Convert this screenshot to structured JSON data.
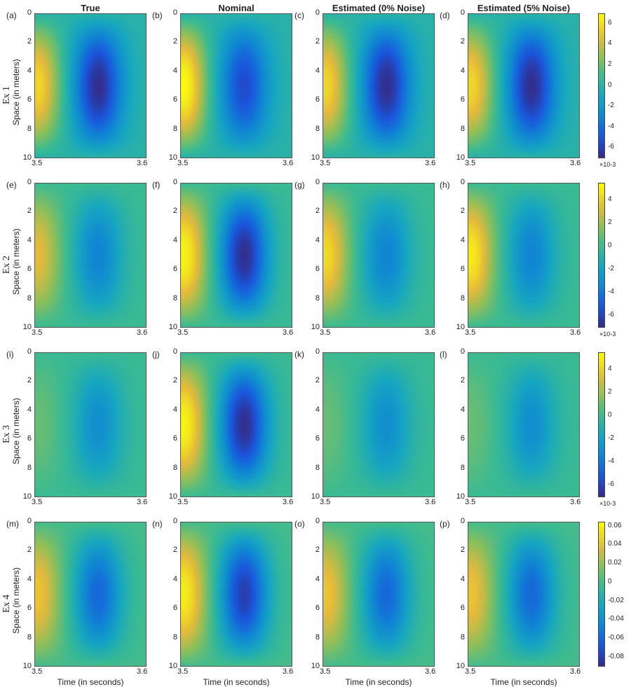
{
  "column_titles": [
    "True",
    "Nominal",
    "Estimated (0% Noise)",
    "Estimated (5% Noise)"
  ],
  "row_labels": [
    "Ex 1",
    "Ex 2",
    "Ex 3",
    "Ex 4"
  ],
  "panel_labels": [
    "(a)",
    "(b)",
    "(c)",
    "(d)",
    "(e)",
    "(f)",
    "(g)",
    "(h)",
    "(i)",
    "(j)",
    "(k)",
    "(l)",
    "(m)",
    "(n)",
    "(o)",
    "(p)"
  ],
  "ylabel": "Space (in meters)",
  "xlabel": "Time (in seconds)",
  "y_ticks": [
    "0",
    "2",
    "4",
    "6",
    "8",
    "10"
  ],
  "x_ticks": [
    "3.5",
    "3.6"
  ],
  "colorbars": [
    {
      "ticks": [
        "6",
        "4",
        "2",
        "0",
        "-2",
        "-4",
        "-6"
      ],
      "exponent": "×10-3",
      "range": [
        -7,
        7
      ]
    },
    {
      "ticks": [
        "4",
        "2",
        "0",
        "-2",
        "-4",
        "-6"
      ],
      "exponent": "×10-3",
      "range": [
        -7,
        5.5
      ]
    },
    {
      "ticks": [
        "4",
        "2",
        "0",
        "-2",
        "-4",
        "-6"
      ],
      "exponent": "×10-3",
      "range": [
        -7,
        5.5
      ]
    },
    {
      "ticks": [
        "0.06",
        "0.04",
        "0.02",
        "0",
        "-0.02",
        "-0.04",
        "-0.06",
        "-0.08"
      ],
      "exponent": "",
      "range": [
        -0.09,
        0.065
      ]
    }
  ],
  "chart_data": {
    "type": "heatmap",
    "x_range": [
      3.5,
      3.6
    ],
    "y_range": [
      0,
      10
    ],
    "colormap": "parula",
    "panels_peak": [
      [
        [
          5.8,
          -6.8
        ],
        [
          7.0,
          -5.5
        ],
        [
          5.8,
          -6.8
        ],
        [
          5.8,
          -6.8
        ]
      ],
      [
        [
          3.5,
          -3.5
        ],
        [
          5.3,
          -6.8
        ],
        [
          4.5,
          -3.5
        ],
        [
          5.0,
          -3.5
        ]
      ],
      [
        [
          1.0,
          -3.0
        ],
        [
          5.3,
          -6.8
        ],
        [
          1.0,
          -3.0
        ],
        [
          1.0,
          -3.0
        ]
      ],
      [
        [
          0.045,
          -0.06
        ],
        [
          0.06,
          -0.08
        ],
        [
          0.045,
          -0.06
        ],
        [
          0.045,
          -0.06
        ]
      ]
    ]
  }
}
